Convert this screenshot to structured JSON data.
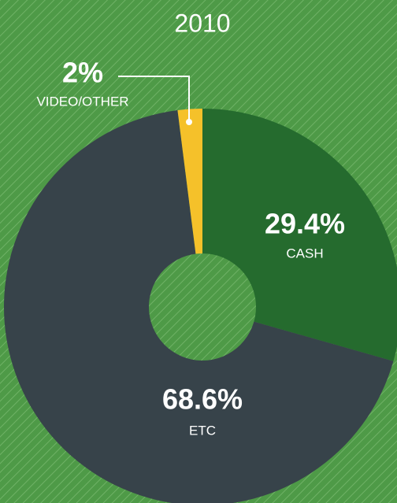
{
  "chart_data": {
    "type": "pie",
    "title": "2010",
    "categories": [
      "CASH",
      "ETC",
      "VIDEO/OTHER"
    ],
    "values": [
      29.4,
      68.6,
      2
    ],
    "value_labels": [
      "29.4%",
      "68.6%",
      "2%"
    ],
    "colors": [
      "#256b2e",
      "#37434a",
      "#f5c12a"
    ]
  }
}
